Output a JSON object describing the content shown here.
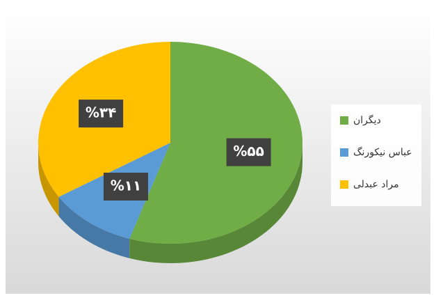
{
  "chart_data": {
    "type": "pie",
    "categories": [
      "دیگران",
      "عباس نیکورنگ",
      "مراد عبدلی"
    ],
    "values": [
      55,
      11,
      34
    ],
    "value_labels": [
      "%۵۵",
      "%۱۱",
      "%۳۴"
    ],
    "colors": [
      "#70ad47",
      "#5b9bd5",
      "#ffc000"
    ],
    "legend": "right"
  }
}
